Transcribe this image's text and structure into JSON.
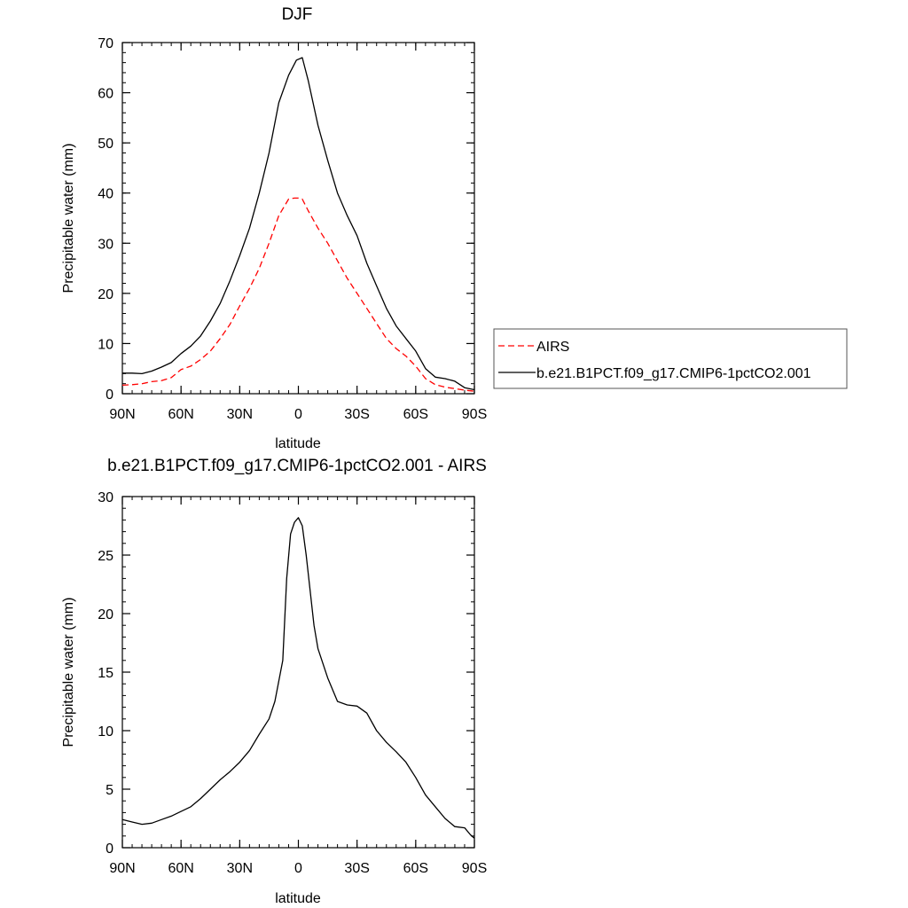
{
  "chart_data": [
    {
      "type": "line",
      "title": "DJF",
      "xlabel": "latitude",
      "ylabel": "Precipitable water (mm)",
      "xlim": [
        90,
        -90
      ],
      "ylim": [
        0,
        70
      ],
      "x_ticks": [
        {
          "value": 90,
          "label": "90N"
        },
        {
          "value": 60,
          "label": "60N"
        },
        {
          "value": 30,
          "label": "30N"
        },
        {
          "value": 0,
          "label": "0"
        },
        {
          "value": -30,
          "label": "30S"
        },
        {
          "value": -60,
          "label": "60S"
        },
        {
          "value": -90,
          "label": "90S"
        }
      ],
      "y_ticks": [
        0,
        10,
        20,
        30,
        40,
        50,
        60,
        70
      ],
      "legend_position": "right",
      "series": [
        {
          "name": "AIRS",
          "color": "#ff0000",
          "style": "dashed",
          "x": [
            90,
            85,
            80,
            75,
            70,
            65,
            60,
            55,
            50,
            45,
            40,
            35,
            30,
            25,
            20,
            15,
            10,
            5,
            2,
            0,
            -2,
            -5,
            -10,
            -15,
            -20,
            -25,
            -30,
            -35,
            -40,
            -45,
            -50,
            -55,
            -60,
            -65,
            -70,
            -75,
            -80,
            -85,
            -90
          ],
          "values": [
            1.7,
            1.8,
            2.0,
            2.4,
            2.6,
            3.2,
            4.8,
            5.5,
            6.8,
            8.5,
            11.0,
            13.8,
            17.5,
            21.0,
            25.0,
            30.0,
            35.5,
            38.8,
            39.0,
            39.0,
            38.8,
            36.5,
            33.0,
            30.0,
            26.5,
            23.0,
            20.0,
            17.0,
            14.0,
            11.0,
            9.0,
            7.5,
            5.5,
            3.0,
            1.8,
            1.3,
            1.0,
            0.7,
            0.5
          ]
        },
        {
          "name": "b.e21.B1PCT.f09_g17.CMIP6-1pctCO2.001",
          "color": "#000000",
          "style": "solid",
          "x": [
            90,
            85,
            80,
            75,
            70,
            65,
            60,
            55,
            50,
            45,
            40,
            35,
            30,
            25,
            20,
            15,
            10,
            5,
            3,
            1,
            -2,
            -5,
            -10,
            -15,
            -20,
            -25,
            -30,
            -35,
            -40,
            -45,
            -50,
            -55,
            -60,
            -65,
            -70,
            -75,
            -80,
            -85,
            -90
          ],
          "values": [
            4.1,
            4.1,
            4.0,
            4.5,
            5.3,
            6.2,
            8.0,
            9.5,
            11.5,
            14.5,
            18.0,
            22.5,
            27.5,
            33.0,
            40.0,
            48.0,
            58.0,
            63.5,
            65.0,
            66.5,
            67.0,
            62.5,
            53.5,
            46.5,
            40.0,
            35.5,
            31.5,
            26.0,
            21.5,
            17.0,
            13.5,
            11.0,
            8.5,
            5.0,
            3.3,
            3.0,
            2.5,
            1.2,
            0.8
          ]
        }
      ]
    },
    {
      "type": "line",
      "title": "b.e21.B1PCT.f09_g17.CMIP6-1pctCO2.001 - AIRS",
      "xlabel": "latitude",
      "ylabel": "Precipitable water (mm)",
      "xlim": [
        90,
        -90
      ],
      "ylim": [
        0,
        30
      ],
      "x_ticks": [
        {
          "value": 90,
          "label": "90N"
        },
        {
          "value": 60,
          "label": "60N"
        },
        {
          "value": 30,
          "label": "30N"
        },
        {
          "value": 0,
          "label": "0"
        },
        {
          "value": -30,
          "label": "30S"
        },
        {
          "value": -60,
          "label": "60S"
        },
        {
          "value": -90,
          "label": "90S"
        }
      ],
      "y_ticks": [
        0,
        5,
        10,
        15,
        20,
        25,
        30
      ],
      "series": [
        {
          "color": "#000000",
          "style": "solid",
          "x": [
            90,
            85,
            80,
            75,
            70,
            65,
            60,
            55,
            50,
            45,
            40,
            35,
            30,
            25,
            20,
            15,
            12,
            8,
            6,
            4,
            2,
            0,
            -2,
            -4,
            -6,
            -8,
            -10,
            -15,
            -20,
            -25,
            -30,
            -35,
            -40,
            -45,
            -50,
            -55,
            -60,
            -65,
            -70,
            -75,
            -80,
            -85,
            -88,
            -90
          ],
          "values": [
            2.4,
            2.2,
            2.0,
            2.1,
            2.4,
            2.7,
            3.1,
            3.5,
            4.2,
            5.0,
            5.8,
            6.5,
            7.3,
            8.3,
            9.7,
            11.0,
            12.5,
            16.0,
            23.0,
            26.8,
            27.8,
            28.2,
            27.5,
            25.0,
            22.0,
            19.0,
            17.0,
            14.5,
            12.5,
            12.2,
            12.1,
            11.5,
            10.0,
            9.0,
            8.2,
            7.3,
            6.0,
            4.5,
            3.5,
            2.5,
            1.8,
            1.7,
            1.1,
            0.8
          ]
        }
      ]
    }
  ]
}
